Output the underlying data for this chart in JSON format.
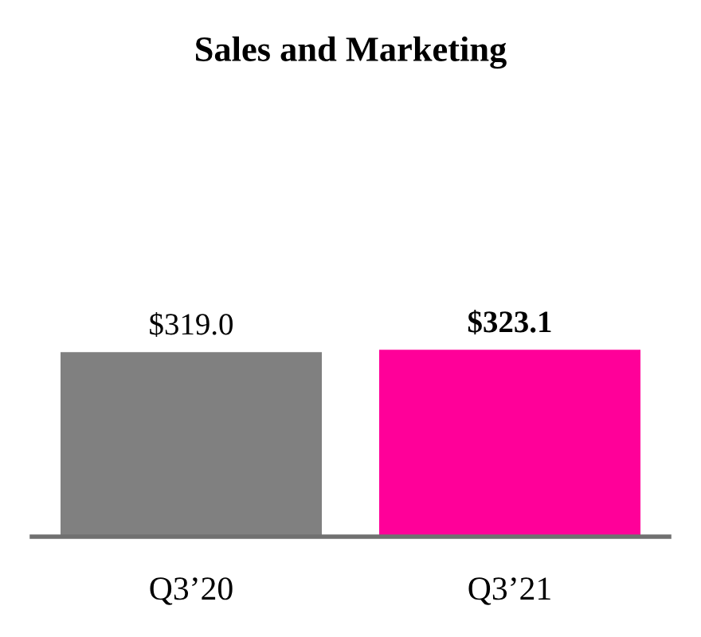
{
  "chart_data": {
    "type": "bar",
    "title": "Sales and Marketing",
    "categories": [
      "Q3’20",
      "Q3’21"
    ],
    "values": [
      319.0,
      323.1
    ],
    "colors": [
      "#808080",
      "#ff0099"
    ],
    "value_labels": [
      "$319.0",
      "$323.1"
    ],
    "grid": false,
    "legend": false
  }
}
